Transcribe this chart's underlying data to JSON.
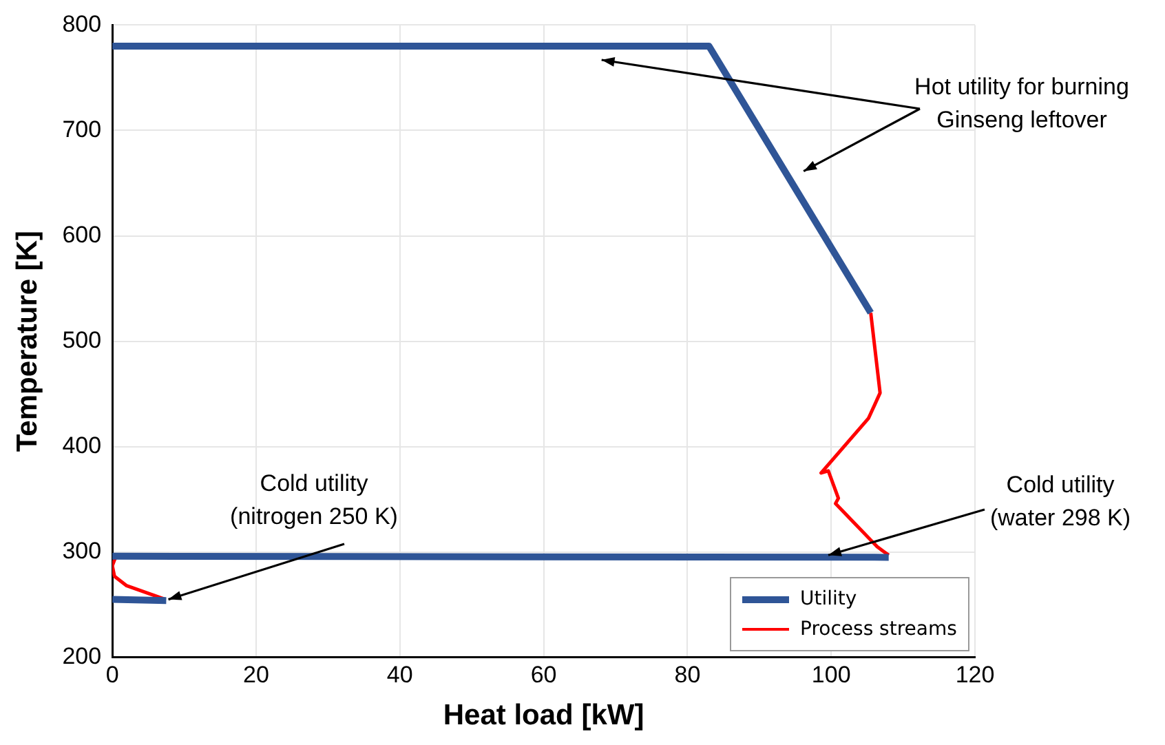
{
  "chart_data": {
    "type": "line",
    "xlabel": "Heat load [kW]",
    "ylabel": "Temperature [K]",
    "xlim": [
      0,
      120
    ],
    "xticks": [
      0,
      20,
      40,
      60,
      80,
      100,
      120
    ],
    "ylim": [
      200,
      800
    ],
    "yticks": [
      200,
      300,
      400,
      500,
      600,
      700,
      800
    ],
    "grid": true,
    "legend": "bottom right",
    "marker": "none",
    "line_style": "solid",
    "series": [
      {
        "name": "Utility",
        "color": "#2f5597",
        "x": [
          0,
          83,
          105.5,
          null,
          0,
          108,
          null,
          0,
          7.5
        ],
        "values": [
          780,
          780,
          527,
          null,
          296,
          295,
          null,
          255,
          254
        ]
      },
      {
        "name": "Process streams",
        "color": "#ff0000",
        "x": [
          105.5,
          106.8,
          105.2,
          98.6,
          99.6,
          101,
          100.6,
          106.4,
          107.2,
          108,
          null,
          0.5,
          0,
          0.3,
          2,
          7.4
        ],
        "values": [
          527,
          451,
          427,
          375,
          377,
          351,
          346,
          305,
          301,
          297,
          null,
          296,
          287,
          277,
          268,
          255
        ]
      }
    ],
    "annotations": [
      "Hot utility for burning\nGinseng leftover",
      {
        "text": "Cold utility\n(nitrogen 250 K)",
        "x": 7.8,
        "y": 255
      },
      {
        "text": "Cold utility\n(water 298 K)",
        "x": 99.6,
        "y": 297
      }
    ]
  }
}
